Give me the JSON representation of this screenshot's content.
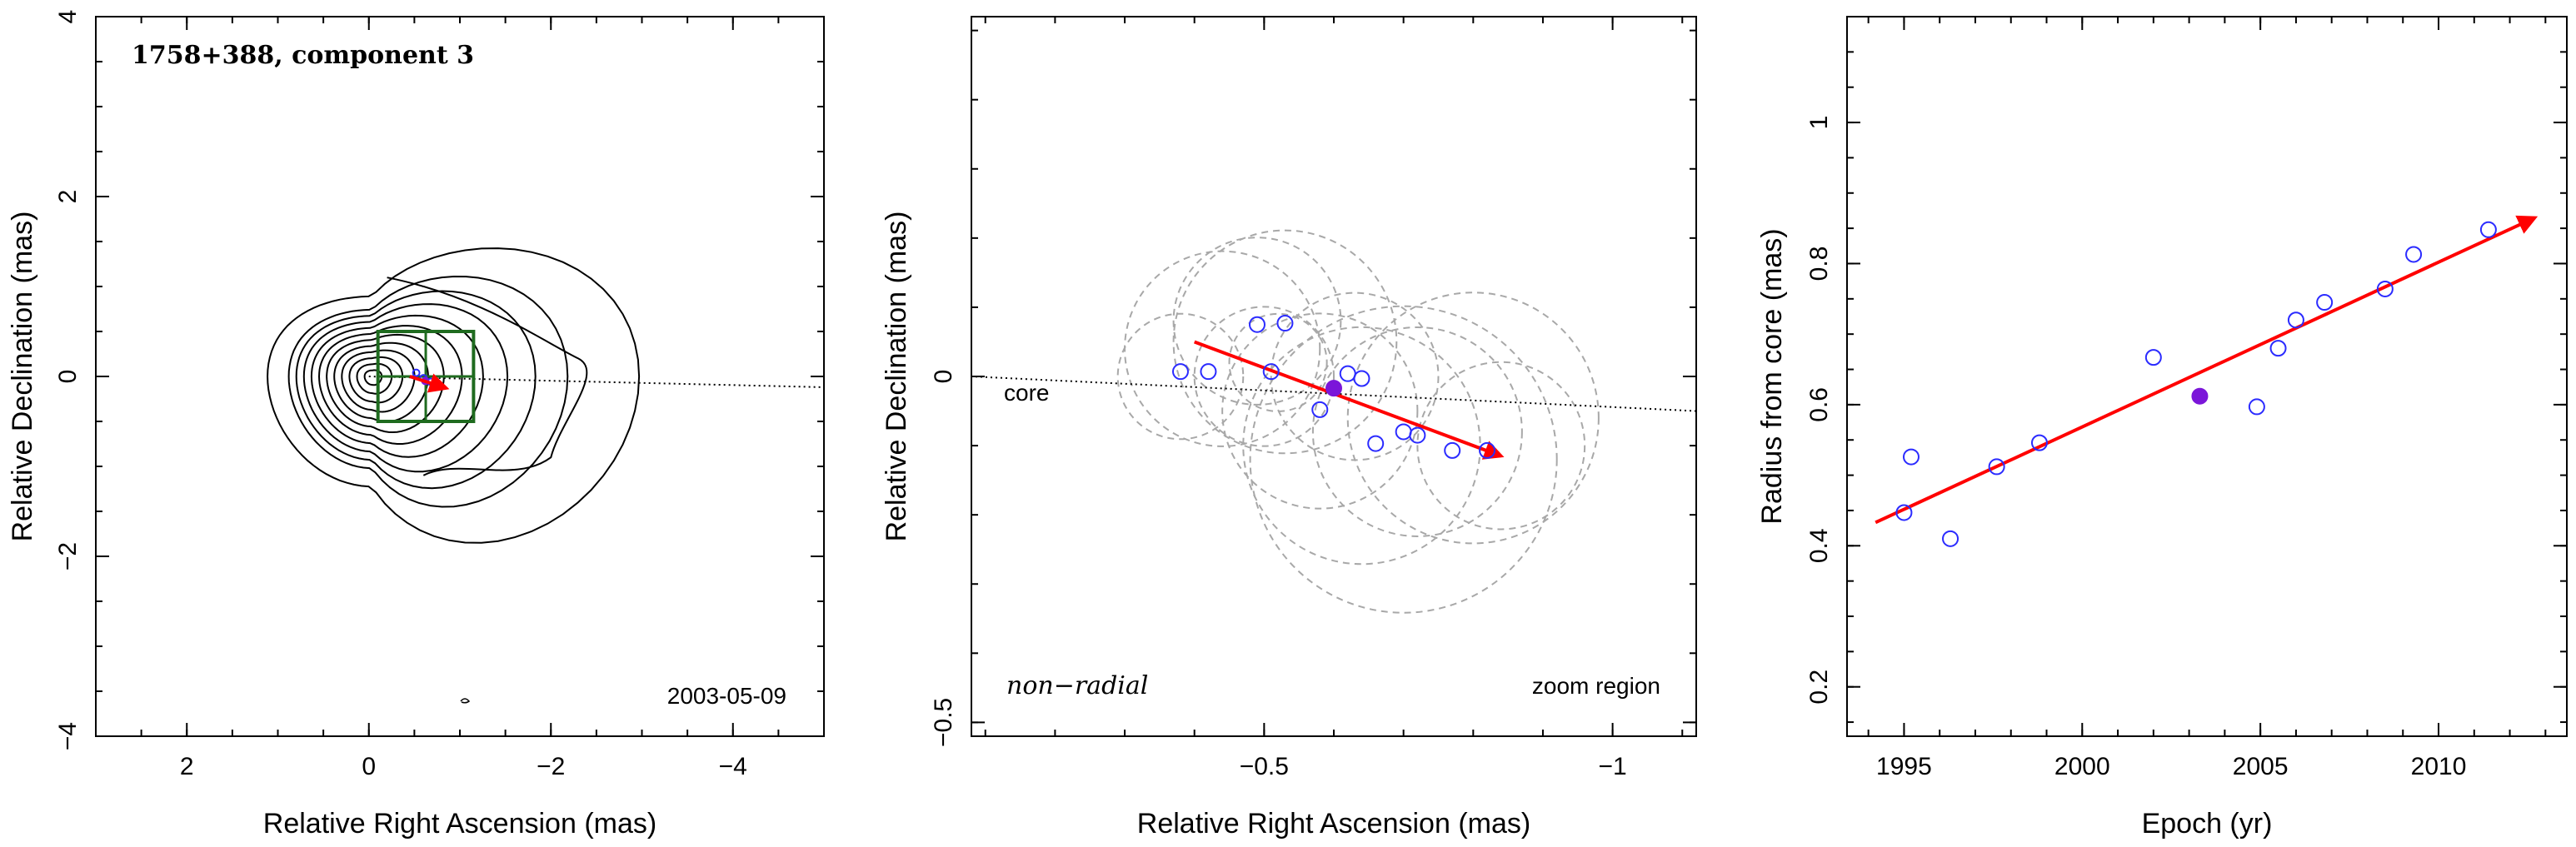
{
  "colors": {
    "axis": "#000000",
    "contour": "#000000",
    "box": "#1f6b1f",
    "vector": "#ff0000",
    "point_open": "#2b2bff",
    "point_filled": "#7b16d9",
    "circles": "#a8a8a8",
    "core_line": "#000000"
  },
  "chart_data": [
    {
      "type": "contour",
      "title": "1758+388, component 3",
      "date": "2003-05-09",
      "xlabel": "Relative Right Ascension (mas)",
      "ylabel": "Relative Declination (mas)",
      "xlim": [
        3,
        -5
      ],
      "ylim": [
        -4,
        4
      ],
      "xticks": [
        {
          "value": 2,
          "label": "2"
        },
        {
          "value": 0,
          "label": "0"
        },
        {
          "value": -2,
          "label": "−2"
        },
        {
          "value": -4,
          "label": "−4"
        }
      ],
      "yticks": [
        {
          "value": -4,
          "label": "−4"
        },
        {
          "value": -2,
          "label": "−2"
        },
        {
          "value": 0,
          "label": "0"
        },
        {
          "value": 2,
          "label": "2"
        },
        {
          "value": 4,
          "label": "4"
        }
      ],
      "core_line": {
        "from": [
          0,
          0
        ],
        "to": [
          -5,
          -0.12
        ]
      },
      "zoom_box": {
        "x": [
          -0.1,
          -1.15
        ],
        "y": [
          -0.5,
          0.5
        ]
      },
      "vector": {
        "from": [
          -0.45,
          0.0
        ],
        "to": [
          -0.85,
          -0.13
        ]
      },
      "points_open": [
        [
          -0.52,
          0.04
        ],
        [
          -0.6,
          -0.02
        ],
        [
          -0.68,
          -0.06
        ],
        [
          -0.76,
          -0.09
        ]
      ],
      "points_filled": [
        [
          -0.62,
          -0.05
        ]
      ]
    },
    {
      "type": "scatter",
      "label_left": "non−radial",
      "label_right": "zoom region",
      "core_label": "core",
      "xlabel": "Relative Right Ascension (mas)",
      "ylabel": "Relative Declination (mas)",
      "xlim": [
        -0.08,
        -1.12
      ],
      "ylim": [
        -0.52,
        0.52
      ],
      "xticks": [
        {
          "value": -0.5,
          "label": "−0.5"
        },
        {
          "value": -1,
          "label": "−1"
        }
      ],
      "yticks": [
        {
          "value": -0.5,
          "label": "−0.5"
        },
        {
          "value": 0,
          "label": "0"
        }
      ],
      "core_line": {
        "from": [
          -1.12,
          -0.05
        ],
        "to": [
          -0.08,
          0.0
        ]
      },
      "vector": {
        "from": [
          -0.4,
          0.05
        ],
        "to": [
          -0.84,
          -0.115
        ]
      },
      "points_open": [
        [
          -0.38,
          0.007
        ],
        [
          -0.42,
          0.007
        ],
        [
          -0.49,
          0.075
        ],
        [
          -0.53,
          0.077
        ],
        [
          -0.51,
          0.007
        ],
        [
          -0.58,
          -0.048
        ],
        [
          -0.64,
          -0.003
        ],
        [
          -0.62,
          0.004
        ],
        [
          -0.66,
          -0.097
        ],
        [
          -0.7,
          -0.08
        ],
        [
          -0.72,
          -0.085
        ],
        [
          -0.77,
          -0.107
        ],
        [
          -0.82,
          -0.107
        ]
      ],
      "points_filled": [
        [
          -0.6,
          -0.017
        ]
      ],
      "circles": [
        {
          "x": -0.38,
          "y": 0.0,
          "r": 0.09
        },
        {
          "x": -0.44,
          "y": 0.04,
          "r": 0.14
        },
        {
          "x": -0.49,
          "y": 0.08,
          "r": 0.12
        },
        {
          "x": -0.53,
          "y": 0.05,
          "r": 0.16
        },
        {
          "x": -0.5,
          "y": 0.0,
          "r": 0.1
        },
        {
          "x": -0.58,
          "y": -0.05,
          "r": 0.14
        },
        {
          "x": -0.63,
          "y": 0.0,
          "r": 0.12
        },
        {
          "x": -0.64,
          "y": -0.1,
          "r": 0.17
        },
        {
          "x": -0.72,
          "y": -0.08,
          "r": 0.15
        },
        {
          "x": -0.8,
          "y": -0.06,
          "r": 0.18
        },
        {
          "x": -0.84,
          "y": -0.1,
          "r": 0.12
        },
        {
          "x": -0.7,
          "y": -0.12,
          "r": 0.22
        },
        {
          "x": -0.52,
          "y": 0.02,
          "r": 0.07
        }
      ]
    },
    {
      "type": "scatter",
      "xlabel": "Epoch (yr)",
      "ylabel": "Radius from core (mas)",
      "xlim": [
        1993.4,
        2013.6
      ],
      "ylim": [
        0.13,
        1.15
      ],
      "xticks": [
        {
          "value": 1995,
          "label": "1995"
        },
        {
          "value": 2000,
          "label": "2000"
        },
        {
          "value": 2005,
          "label": "2005"
        },
        {
          "value": 2010,
          "label": "2010"
        }
      ],
      "yticks": [
        {
          "value": 0.2,
          "label": "0.2"
        },
        {
          "value": 0.4,
          "label": "0.4"
        },
        {
          "value": 0.6,
          "label": "0.6"
        },
        {
          "value": 0.8,
          "label": "0.8"
        },
        {
          "value": 1,
          "label": "1"
        }
      ],
      "vector": {
        "from": [
          1994.2,
          0.433
        ],
        "to": [
          2012.7,
          0.865
        ]
      },
      "points_open": [
        [
          1995.0,
          0.447
        ],
        [
          1995.2,
          0.526
        ],
        [
          1996.3,
          0.41
        ],
        [
          1997.6,
          0.512
        ],
        [
          1998.8,
          0.546
        ],
        [
          2002.0,
          0.667
        ],
        [
          2004.9,
          0.597
        ],
        [
          2005.5,
          0.68
        ],
        [
          2006.0,
          0.72
        ],
        [
          2006.8,
          0.745
        ],
        [
          2008.5,
          0.764
        ],
        [
          2009.3,
          0.813
        ],
        [
          2011.4,
          0.848
        ]
      ],
      "points_filled": [
        [
          2003.3,
          0.612
        ]
      ]
    }
  ]
}
